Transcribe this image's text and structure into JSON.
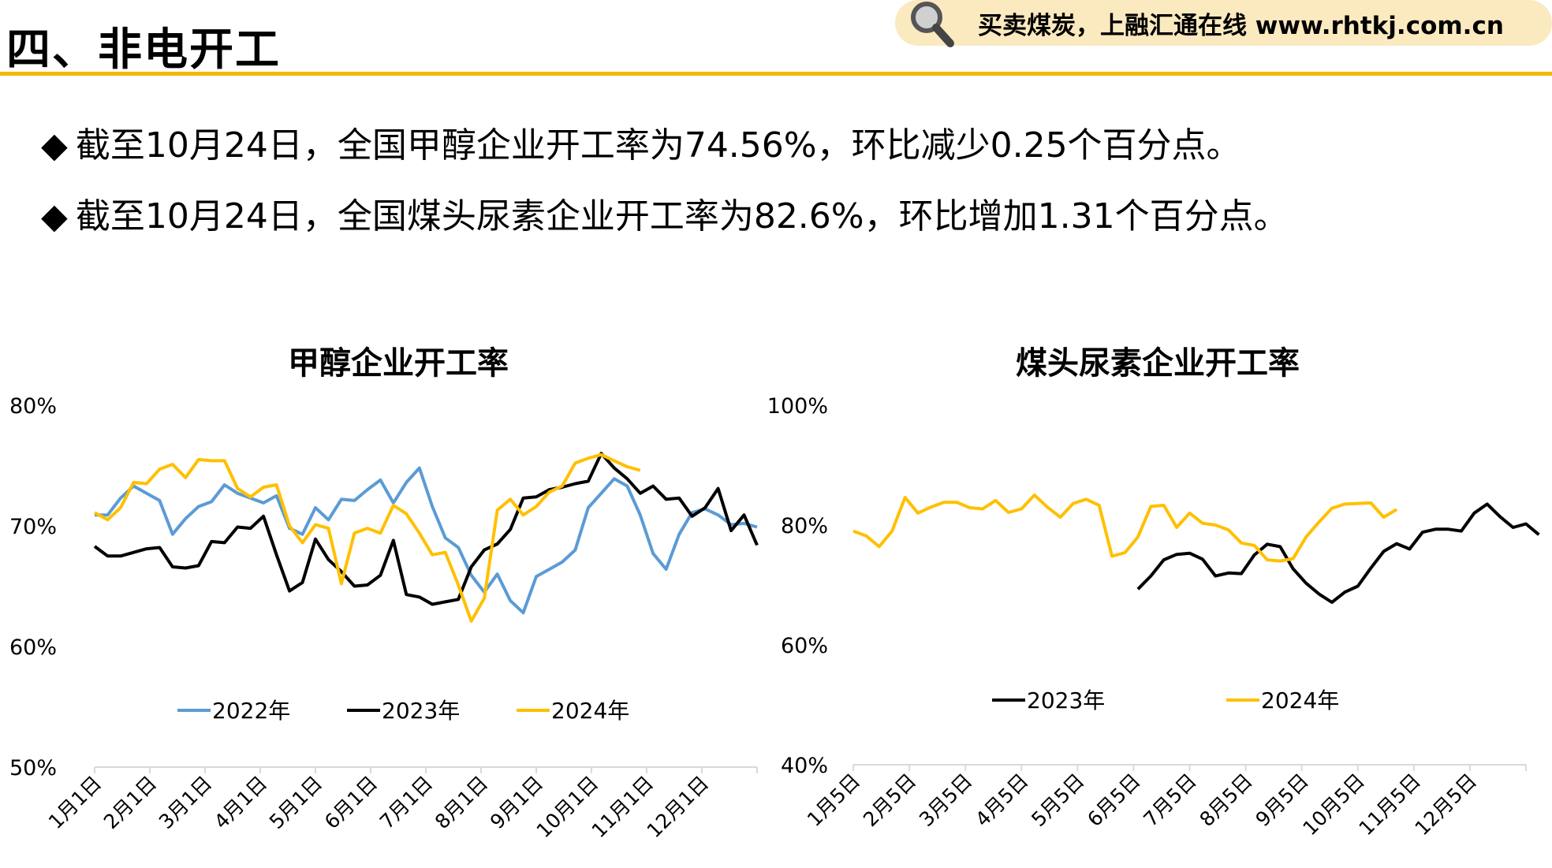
{
  "header": {
    "title": "四、非电开工",
    "promo_text": "买卖煤炭，上融汇通在线 www.rhtkj.com.cn",
    "accent_color": "#f5b800",
    "banner_color": "#fbe9c0"
  },
  "bullets": [
    {
      "symbol": "◆",
      "text": "截至10月24日，全国甲醇企业开工率为74.56%，环比减少0.25个百分点。"
    },
    {
      "symbol": "◆",
      "text": "截至10月24日，全国煤头尿素企业开工率为82.6%，环比增加1.31个百分点。"
    }
  ],
  "chart_data": [
    {
      "type": "line",
      "title": "甲醇企业开工率",
      "xlabel": "",
      "ylabel": "",
      "ylim": [
        50,
        80
      ],
      "yticks": [
        "50%",
        "60%",
        "70%",
        "80%"
      ],
      "x_ticks": [
        "1月1日",
        "2月1日",
        "3月1日",
        "4月1日",
        "5月1日",
        "6月1日",
        "7月1日",
        "8月1日",
        "9月1日",
        "10月1日",
        "11月1日",
        "12月1日"
      ],
      "legend_position": "bottom",
      "grid": false,
      "series": [
        {
          "name": "2022年",
          "color": "#5b9bd5",
          "values": [
            70.9,
            70.9,
            72.3,
            73.3,
            72.7,
            72.1,
            69.3,
            70.6,
            71.6,
            72.0,
            73.4,
            72.7,
            72.3,
            71.9,
            72.5,
            69.8,
            69.3,
            71.5,
            70.5,
            72.2,
            72.1,
            73.0,
            73.8,
            71.9,
            73.6,
            74.8,
            71.6,
            69.0,
            68.2,
            65.9,
            64.5,
            66.0,
            63.8,
            62.8,
            65.8,
            66.4,
            67.0,
            68.0,
            71.5,
            72.7,
            73.9,
            73.3,
            70.9,
            67.7,
            66.4,
            69.3,
            71.1,
            71.4,
            70.9,
            70.1,
            70.2,
            69.9
          ]
        },
        {
          "name": "2023年",
          "color": "#000000",
          "values": [
            68.3,
            67.5,
            67.5,
            67.8,
            68.1,
            68.2,
            66.6,
            66.5,
            66.7,
            68.7,
            68.6,
            69.9,
            69.8,
            70.8,
            67.6,
            64.6,
            65.3,
            68.9,
            67.2,
            66.2,
            65.0,
            65.1,
            65.9,
            68.8,
            64.3,
            64.1,
            63.5,
            63.7,
            63.9,
            66.6,
            68.0,
            68.5,
            69.7,
            72.3,
            72.4,
            73.0,
            73.2,
            73.5,
            73.7,
            76.0,
            74.8,
            73.9,
            72.7,
            73.3,
            72.2,
            72.3,
            70.8,
            71.5,
            73.1,
            69.6,
            70.9,
            68.4
          ]
        },
        {
          "name": "2024年",
          "color": "#ffc000",
          "values": [
            71.1,
            70.5,
            71.5,
            73.6,
            73.5,
            74.7,
            75.1,
            74.0,
            75.5,
            75.4,
            75.4,
            73.1,
            72.4,
            73.2,
            73.4,
            70.0,
            68.6,
            70.1,
            69.8,
            65.2,
            69.4,
            69.8,
            69.4,
            71.7,
            71.0,
            69.4,
            67.6,
            67.8,
            65.1,
            62.1,
            64.0,
            71.3,
            72.2,
            70.9,
            71.6,
            72.8,
            73.3,
            75.2,
            75.6,
            75.9,
            75.4,
            74.9,
            74.6
          ]
        }
      ]
    },
    {
      "type": "line",
      "title": "煤头尿素企业开工率",
      "xlabel": "",
      "ylabel": "",
      "ylim": [
        40,
        100
      ],
      "yticks": [
        "40%",
        "60%",
        "80%",
        "100%"
      ],
      "x_ticks": [
        "1月5日",
        "2月5日",
        "3月5日",
        "4月5日",
        "5月5日",
        "6月5日",
        "7月5日",
        "8月5日",
        "9月5日",
        "10月5日",
        "11月5日",
        "12月5日"
      ],
      "legend_position": "bottom",
      "grid": false,
      "series": [
        {
          "name": "2023年",
          "color": "#000000",
          "start_index": 22,
          "values": [
            69.3,
            71.5,
            74.2,
            75.1,
            75.3,
            74.3,
            71.5,
            72.0,
            71.9,
            75.0,
            76.8,
            76.4,
            72.7,
            70.3,
            68.5,
            67.1,
            68.8,
            69.8,
            72.8,
            75.6,
            76.9,
            76.0,
            78.8,
            79.3,
            79.3,
            79.0,
            82.0,
            83.5,
            81.4,
            79.6,
            80.2,
            78.4
          ]
        },
        {
          "name": "2024年",
          "color": "#ffc000",
          "start_index": 0,
          "values": [
            79.0,
            78.2,
            76.4,
            79.0,
            84.6,
            82.0,
            83.0,
            83.8,
            83.8,
            82.9,
            82.7,
            84.1,
            82.1,
            82.7,
            85.0,
            83.0,
            81.3,
            83.6,
            84.3,
            83.3,
            74.8,
            75.4,
            78.0,
            83.1,
            83.3,
            79.6,
            82.0,
            80.3,
            80.0,
            79.2,
            77.0,
            76.6,
            74.2,
            74.0,
            74.4,
            78.0,
            80.5,
            82.8,
            83.5,
            83.6,
            83.7,
            81.3,
            82.6
          ]
        }
      ]
    }
  ]
}
